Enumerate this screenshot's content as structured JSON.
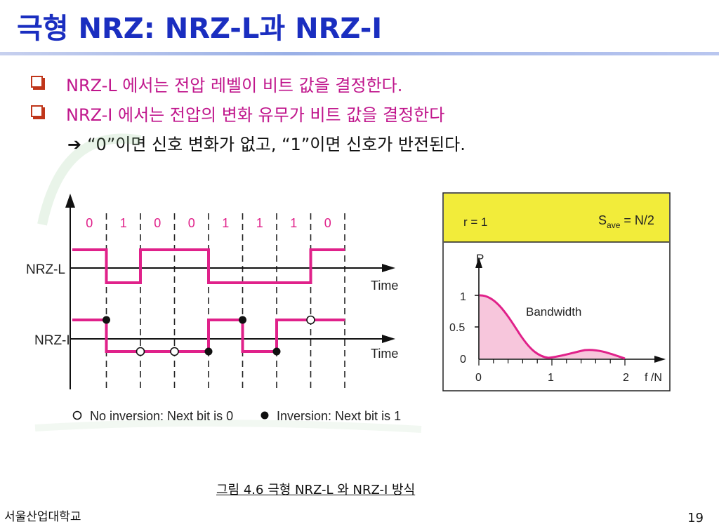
{
  "slide": {
    "title": "극형 NRZ: NRZ-L과 NRZ-I",
    "bullets": [
      "NRZ-L 에서는 전압 레벨이 비트 값을 결정한다.",
      "NRZ-I 에서는 전압의 변화 유무가 비트 값을 결정한다"
    ],
    "arrow_text": "“0”이면 신호 변화가 없고, “1”이면 신호가 반전된다.",
    "caption": "그림 4.6  극형 NRZ-L 와 NRZ-I 방식",
    "footer_left": "서울산업대학교",
    "page_number": "19"
  },
  "waveform": {
    "bits": [
      "0",
      "1",
      "0",
      "0",
      "1",
      "1",
      "1",
      "0"
    ],
    "nrz_l_label": "NRZ-L",
    "nrz_i_label": "NRZ-I",
    "time_label": "Time",
    "legend_no_inversion": "No inversion: Next bit is 0",
    "legend_inversion": "Inversion: Next bit is 1",
    "signal_color": "#e0218a"
  },
  "spectrum": {
    "header_left": "r = 1",
    "save_main": "S",
    "save_sub": "ave",
    "save_rest": " = N/2",
    "p_label": "P",
    "bandwidth_label": "Bandwidth",
    "y_ticks": [
      "1",
      "0.5",
      "0"
    ],
    "x_ticks": [
      "0",
      "1",
      "2"
    ],
    "x_unit": "f /N",
    "header_color": "#f2ec3a",
    "fill_color": "#f7c6dc",
    "curve_color": "#e0218a"
  }
}
